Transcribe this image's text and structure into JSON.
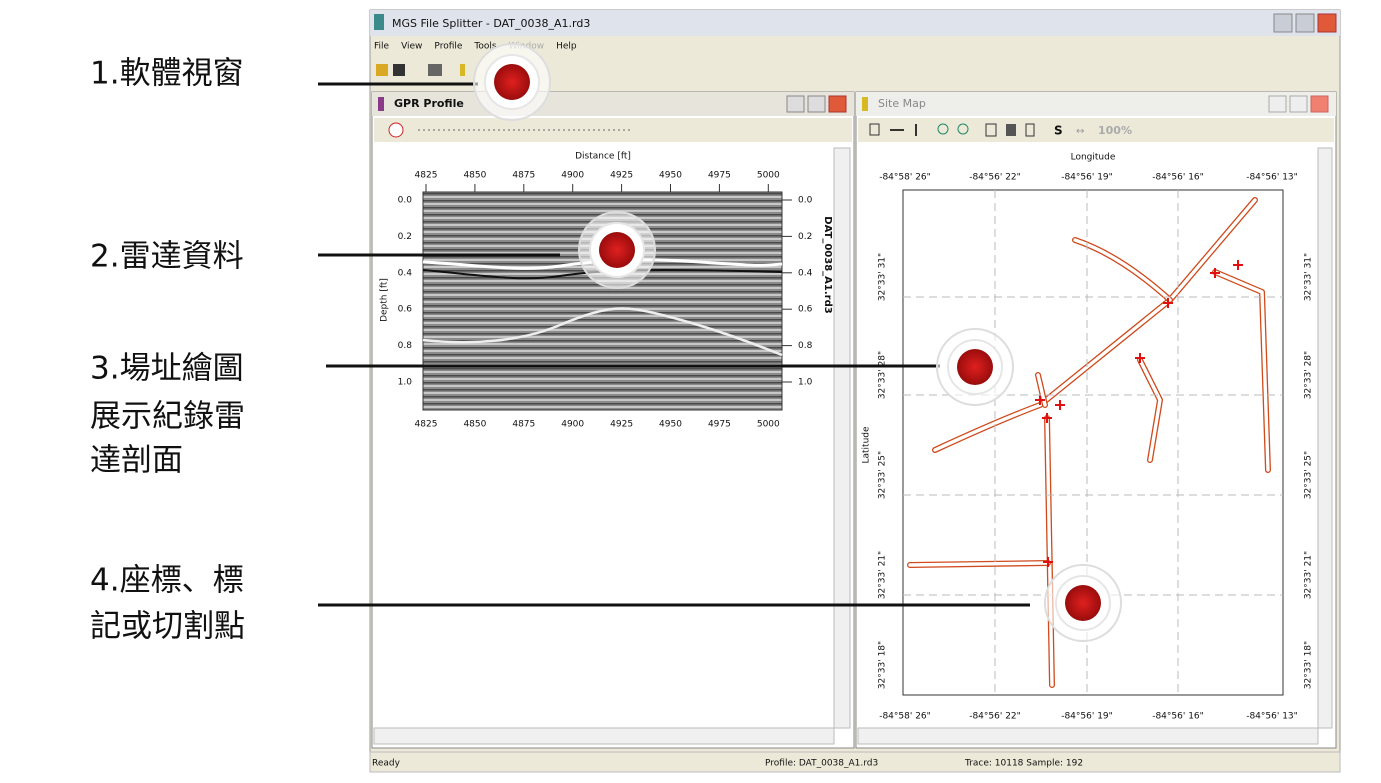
{
  "annotations": [
    {
      "lines": [
        "1.軟體視窗"
      ]
    },
    {
      "lines": [
        "2.雷達資料"
      ]
    },
    {
      "lines": [
        "3.場址繪圖",
        "展示紀錄雷",
        "達剖面"
      ]
    },
    {
      "lines": [
        "4.座標、標",
        "記或切割點"
      ]
    }
  ],
  "window": {
    "title": "MGS File Splitter - DAT_0038_A1.rd3",
    "menu": [
      "File",
      "View",
      "Profile",
      "Tools",
      "Window",
      "Help"
    ]
  },
  "gpr_profile": {
    "title": "GPR Profile",
    "x_label": "Distance [ft]",
    "x_ticks": [
      "4825",
      "4850",
      "4875",
      "4900",
      "4925",
      "4950",
      "4975",
      "5000"
    ],
    "y_label": "Depth [ft]",
    "y_ticks": [
      "0.0",
      "0.2",
      "0.4",
      "0.6",
      "0.8",
      "1.0"
    ],
    "file_label": "DAT_0038_A1.rd3"
  },
  "site_map": {
    "title": "Site Map",
    "toolbar": [
      "S",
      "↔",
      "100%"
    ],
    "x_label": "Longitude",
    "x_ticks": [
      "-84°58' 26\"",
      "-84°56' 22\"",
      "-84°56' 19\"",
      "-84°56' 16\"",
      "-84°56' 13\""
    ],
    "y_label": "Latitude",
    "y_ticks": [
      "32°33' 31\"",
      "32°33' 28\"",
      "32°33' 25\"",
      "32°33' 21\"",
      "32°33' 18\""
    ]
  },
  "status_bar": [
    "Ready",
    "Profile: DAT_0038_A1.rd3",
    "Trace: 10118  Sample: 192"
  ]
}
